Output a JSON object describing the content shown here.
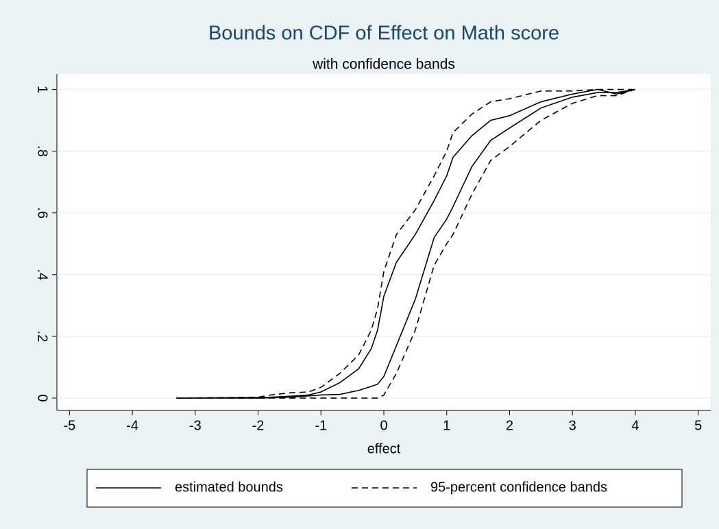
{
  "chart_data": {
    "type": "line",
    "title": "Bounds on CDF of Effect on Math score",
    "subtitle": "with confidence bands",
    "x_label": "effect",
    "x": [
      -3.3,
      -2,
      -1.8,
      -1.5,
      -1.2,
      -1,
      -0.7,
      -0.4,
      -0.2,
      -0.1,
      0,
      0.2,
      0.5,
      0.8,
      1,
      1.1,
      1.4,
      1.7,
      2,
      2.5,
      3,
      3.4,
      3.7,
      4
    ],
    "series": [
      {
        "name": "estimated bounds",
        "color": "#000000",
        "style": "solid",
        "values": [
          0,
          0.002,
          0.003,
          0.006,
          0.01,
          0.02,
          0.05,
          0.095,
          0.16,
          0.22,
          0.33,
          0.44,
          0.53,
          0.64,
          0.72,
          0.78,
          0.85,
          0.9,
          0.915,
          0.96,
          0.985,
          1,
          0.985,
          1
        ]
      },
      {
        "name": "estimated bounds",
        "color": "#000000",
        "style": "solid",
        "values": [
          0,
          0,
          0.001,
          0.003,
          0.007,
          0.01,
          0.012,
          0.025,
          0.038,
          0.045,
          0.07,
          0.17,
          0.32,
          0.52,
          0.58,
          0.62,
          0.75,
          0.835,
          0.875,
          0.94,
          0.975,
          0.99,
          0.99,
          1
        ]
      },
      {
        "name": "95-percent confidence bands",
        "color": "#000000",
        "style": "dashed",
        "values": [
          0,
          0.003,
          0.01,
          0.017,
          0.02,
          0.035,
          0.08,
          0.14,
          0.22,
          0.29,
          0.41,
          0.53,
          0.61,
          0.72,
          0.8,
          0.86,
          0.92,
          0.96,
          0.97,
          0.995,
          0.995,
          1,
          1,
          1
        ]
      },
      {
        "name": "95-percent confidence bands",
        "color": "#000000",
        "style": "dashed",
        "values": [
          0,
          0,
          0,
          0,
          0,
          0,
          0,
          0,
          0,
          0,
          0.01,
          0.08,
          0.22,
          0.43,
          0.5,
          0.53,
          0.66,
          0.77,
          0.815,
          0.9,
          0.955,
          0.98,
          0.98,
          1
        ]
      }
    ],
    "xlim": [
      -5.2,
      5.2
    ],
    "xticks": [
      -5,
      -4,
      -3,
      -2,
      -1,
      0,
      1,
      2,
      3,
      4,
      5
    ],
    "ylim": [
      -0.04,
      1.05
    ],
    "yticks": [
      0,
      {
        "value": 0.2,
        "label": ".2"
      },
      {
        "value": 0.4,
        "label": ".4"
      },
      {
        "value": 0.6,
        "label": ".6"
      },
      {
        "value": 0.8,
        "label": ".8"
      },
      1
    ],
    "grid": true,
    "legend": "bottom"
  }
}
